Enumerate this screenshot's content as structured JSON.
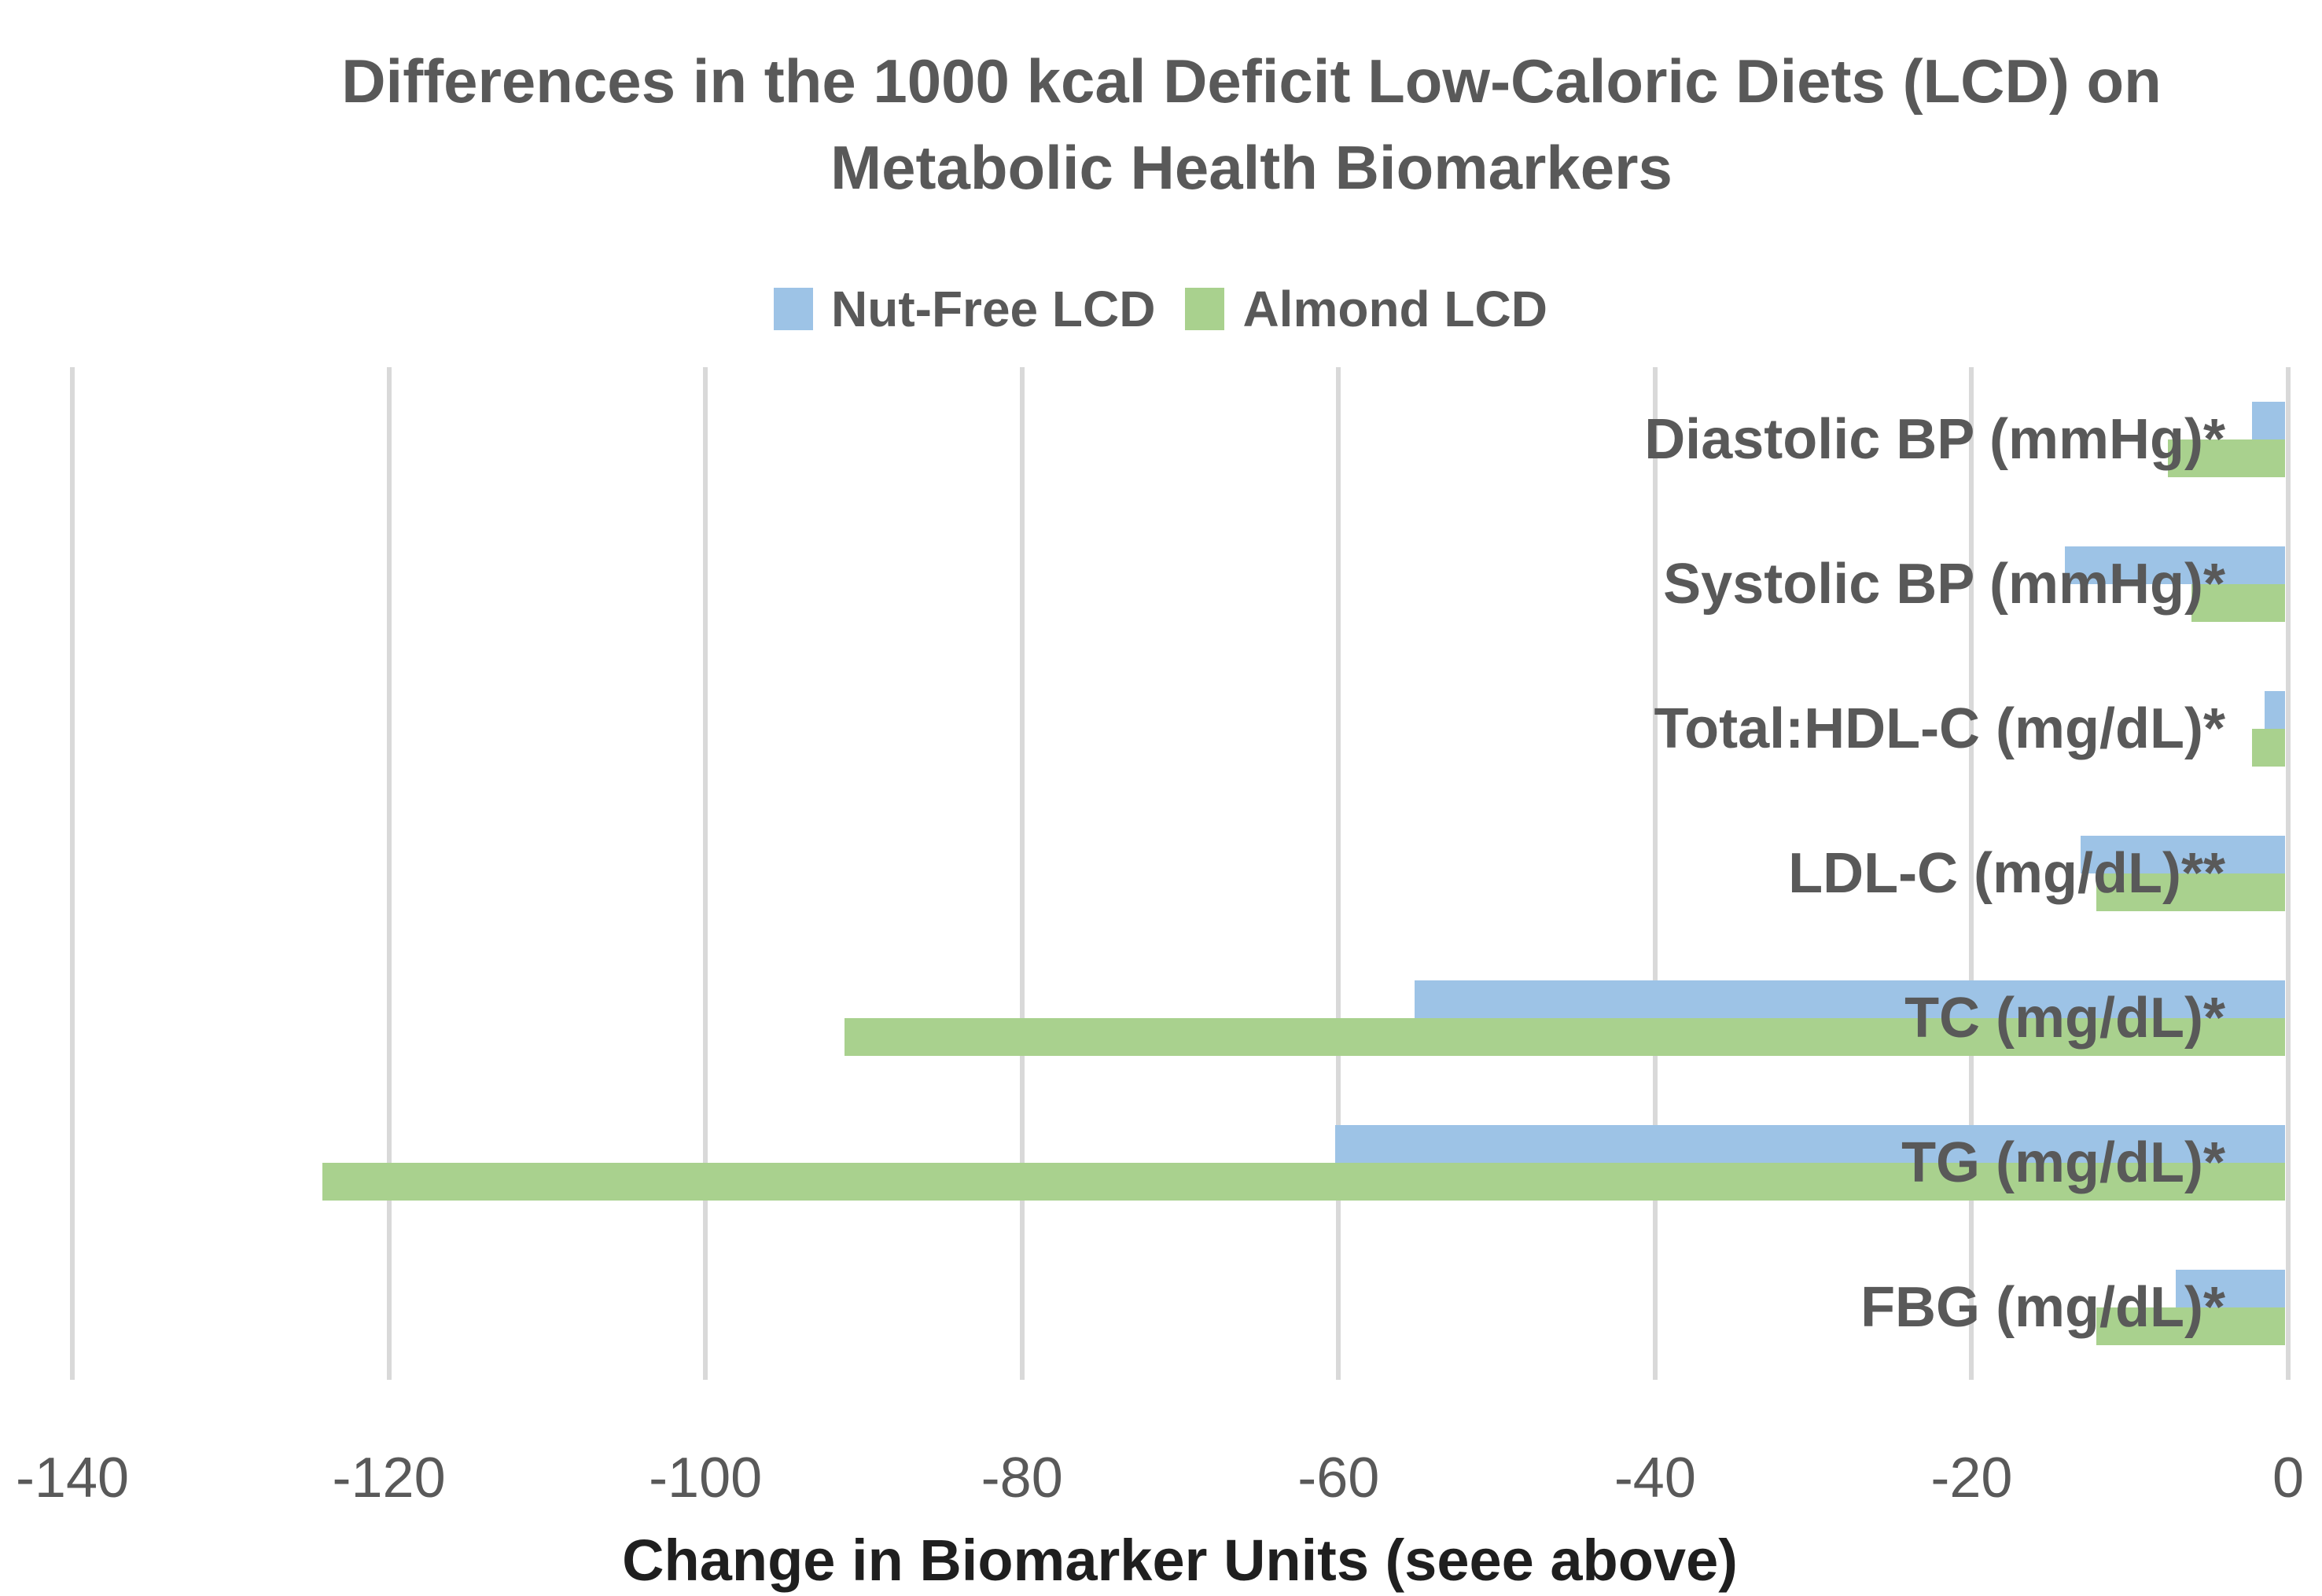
{
  "title": {
    "line1": "Differences in the 1000 kcal Deficit Low-Caloric Diets (LCD) on",
    "line2": "Metabolic Health Biomarkers"
  },
  "legend": [
    {
      "label": "Nut-Free LCD",
      "color": "#9DC3E6"
    },
    {
      "label": "Almond LCD",
      "color": "#A9D18E"
    }
  ],
  "axis": {
    "xlabel": "Change in Biomarker Units (seee above)"
  },
  "colors": {
    "bar_blue": "#9DC3E6",
    "bar_green": "#A9D18E",
    "text_gray": "#595959",
    "gridline": "#D9D9D9",
    "axis_title_text": "#1f1f1f",
    "background": "#ffffff"
  },
  "chart_data": {
    "type": "bar",
    "orientation": "horizontal",
    "title": "Differences in the 1000 kcal Deficit Low-Caloric Diets (LCD) on Metabolic Health Biomarkers",
    "xlabel": "Change in Biomarker Units (seee above)",
    "ylabel": "",
    "xlim": [
      -140,
      0
    ],
    "xticks": [
      -140,
      -120,
      -100,
      -80,
      -60,
      -40,
      -20,
      0
    ],
    "grid": true,
    "legend_position": "top",
    "categories": [
      "Diastolic BP (mmHg)*",
      "Systolic BP (mmHg)*",
      "Total:HDL-C (mg/dL)*",
      "LDL-C (mg/dL)**",
      "TC (mg/dL)*",
      "TG (mg/dL)*",
      "FBG (mg/dL)*"
    ],
    "series": [
      {
        "name": "Nut-Free LCD",
        "color": "#9DC3E6",
        "values": [
          -2.1,
          -13.9,
          -1.3,
          -12.9,
          -55,
          -60,
          -6.9
        ]
      },
      {
        "name": "Almond LCD",
        "color": "#A9D18E",
        "values": [
          -7.4,
          -5.9,
          -2.1,
          -11.9,
          -91,
          -124,
          -11.9
        ]
      }
    ]
  }
}
